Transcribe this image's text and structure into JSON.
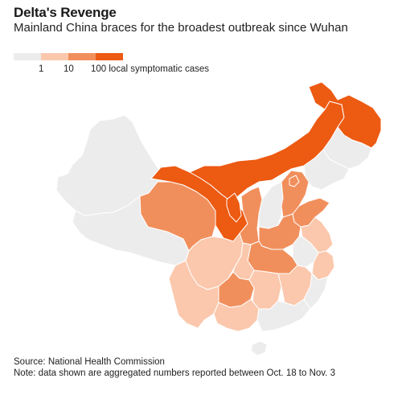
{
  "title": "Delta's Revenge",
  "subtitle": "Mainland China braces for the broadest outbreak since Wuhan",
  "legend": {
    "labels": [
      "1",
      "10",
      "100 local symptomatic cases"
    ],
    "colors": {
      "none": "#ececec",
      "low": "#fbc8ad",
      "mid": "#f18f5c",
      "high": "#ed5a12"
    }
  },
  "footer": {
    "source": "Source: National Health Commission",
    "note": "Note: data shown are aggregated numbers reported between Oct. 18 to Nov. 3"
  },
  "map_data": {
    "type": "choropleth",
    "regions": [
      {
        "name": "Heilongjiang",
        "level": "high"
      },
      {
        "name": "Inner Mongolia",
        "level": "high"
      },
      {
        "name": "Gansu",
        "level": "high"
      },
      {
        "name": "Ningxia",
        "level": "high"
      },
      {
        "name": "Qinghai",
        "level": "mid"
      },
      {
        "name": "Shaanxi",
        "level": "mid"
      },
      {
        "name": "Hebei",
        "level": "mid"
      },
      {
        "name": "Beijing",
        "level": "mid"
      },
      {
        "name": "Shandong",
        "level": "mid"
      },
      {
        "name": "Henan",
        "level": "mid"
      },
      {
        "name": "Hubei",
        "level": "mid"
      },
      {
        "name": "Guizhou",
        "level": "mid"
      },
      {
        "name": "Sichuan",
        "level": "low"
      },
      {
        "name": "Yunnan",
        "level": "low"
      },
      {
        "name": "Chongqing",
        "level": "low"
      },
      {
        "name": "Hunan",
        "level": "low"
      },
      {
        "name": "Jiangxi",
        "level": "low"
      },
      {
        "name": "Jiangsu",
        "level": "low"
      },
      {
        "name": "Zhejiang",
        "level": "low"
      },
      {
        "name": "Guangxi",
        "level": "low"
      },
      {
        "name": "Xinjiang",
        "level": "none"
      },
      {
        "name": "Tibet",
        "level": "none"
      },
      {
        "name": "Jilin",
        "level": "none"
      },
      {
        "name": "Liaoning",
        "level": "none"
      },
      {
        "name": "Shanxi",
        "level": "none"
      },
      {
        "name": "Anhui",
        "level": "none"
      },
      {
        "name": "Fujian",
        "level": "none"
      },
      {
        "name": "Guangdong",
        "level": "none"
      },
      {
        "name": "Hainan",
        "level": "none"
      }
    ]
  }
}
